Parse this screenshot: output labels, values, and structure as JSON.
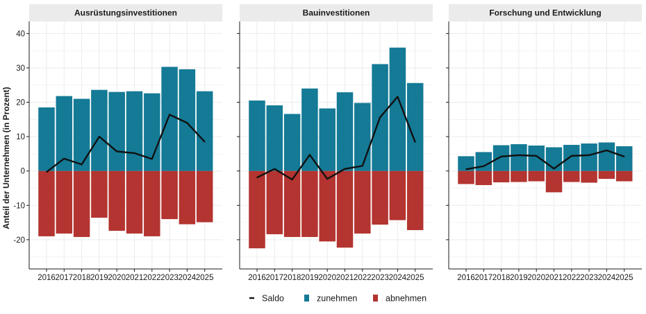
{
  "chart_data": {
    "type": "bar",
    "ylabel": "Anteil der Unternehmen (in Prozent)",
    "xlabel": "",
    "ylim": [
      -28.5,
      43.5
    ],
    "yticks": [
      -20,
      -10,
      0,
      10,
      20,
      30,
      40
    ],
    "categories": [
      "2016",
      "2017",
      "2018",
      "2019",
      "2020",
      "2021",
      "2022",
      "2023",
      "2024",
      "2025"
    ],
    "colors": {
      "zunehmen": "#147a96",
      "abnehmen": "#b33430",
      "saldo": "#111111"
    },
    "legend": {
      "position": "bottom",
      "items": [
        {
          "key": "saldo",
          "label": "Saldo"
        },
        {
          "key": "zunehmen",
          "label": "zunehmen"
        },
        {
          "key": "abnehmen",
          "label": "abnehmen"
        }
      ]
    },
    "panels": [
      {
        "title": "Ausrüstungsinvestitionen",
        "zunehmen": [
          18.5,
          21.8,
          21.0,
          23.6,
          23.0,
          23.2,
          22.6,
          30.3,
          29.6,
          23.2
        ],
        "abnehmen": [
          -19.0,
          -18.2,
          -19.2,
          -13.6,
          -17.4,
          -18.2,
          -19.0,
          -14.0,
          -15.5,
          -14.9
        ],
        "saldo": [
          -0.3,
          3.6,
          1.9,
          10.0,
          5.7,
          5.2,
          3.5,
          16.4,
          14.0,
          8.5
        ]
      },
      {
        "title": "Bauinvestitionen",
        "zunehmen": [
          20.5,
          19.1,
          16.6,
          24.0,
          18.2,
          22.9,
          19.8,
          31.1,
          35.9,
          25.6
        ],
        "abnehmen": [
          -22.5,
          -18.4,
          -19.2,
          -19.2,
          -20.5,
          -22.3,
          -18.2,
          -15.6,
          -14.3,
          -17.2
        ],
        "saldo": [
          -1.9,
          0.6,
          -2.5,
          4.7,
          -2.3,
          0.6,
          1.5,
          15.6,
          21.6,
          8.4
        ]
      },
      {
        "title": "Forschung und Entwicklung",
        "zunehmen": [
          4.3,
          5.5,
          7.5,
          7.8,
          7.4,
          6.9,
          7.6,
          8.0,
          8.3,
          7.2
        ],
        "abnehmen": [
          -3.8,
          -4.1,
          -3.3,
          -3.2,
          -3.0,
          -6.2,
          -3.2,
          -3.4,
          -2.3,
          -3.0
        ],
        "saldo": [
          0.5,
          1.4,
          4.2,
          4.6,
          4.4,
          0.7,
          4.4,
          4.6,
          6.0,
          4.2
        ]
      }
    ]
  }
}
